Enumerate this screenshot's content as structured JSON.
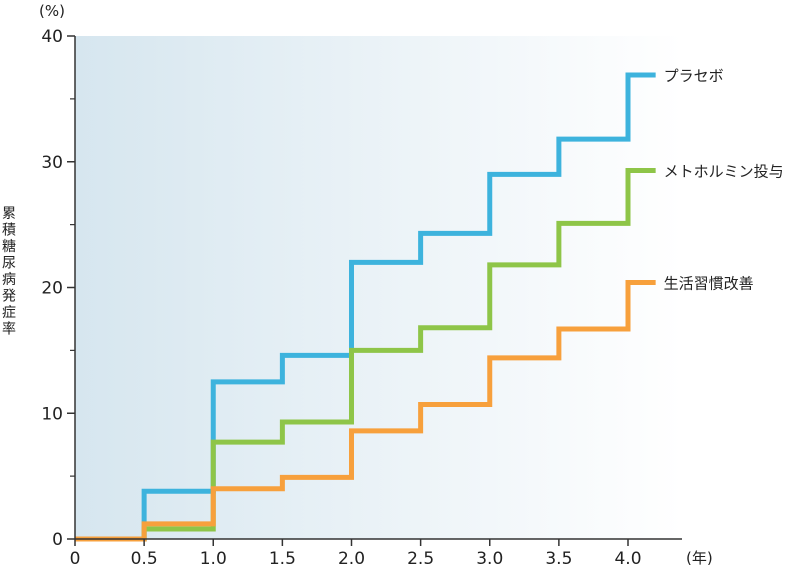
{
  "chart_data": {
    "type": "line",
    "step": true,
    "ylabel": "累積糖尿病発症率",
    "y_unit": "(%)",
    "x_unit": "(年)",
    "xlim": [
      0,
      4.3
    ],
    "ylim": [
      0,
      40
    ],
    "x_ticks": [
      "0",
      "0.5",
      "1.0",
      "1.5",
      "2.0",
      "2.5",
      "3.0",
      "3.5",
      "4.0"
    ],
    "x_tick_values": [
      0,
      0.5,
      1.0,
      1.5,
      2.0,
      2.5,
      3.0,
      3.5,
      4.0
    ],
    "y_ticks": [
      "0",
      "10",
      "20",
      "30",
      "40"
    ],
    "y_tick_values": [
      0,
      10,
      20,
      30,
      40
    ],
    "y_minor_ticks": [
      5,
      15,
      25,
      35
    ],
    "grid": false,
    "legend_placement": "right-end-of-lines",
    "background": {
      "type": "gradient",
      "from": "#d6e6ef",
      "to": "#ffffff",
      "direction": "left-to-right"
    },
    "series": [
      {
        "name": "プラセボ",
        "color": "#3db3dd",
        "steps": [
          [
            0,
            0
          ],
          [
            0.5,
            3.8
          ],
          [
            1.0,
            12.5
          ],
          [
            1.5,
            14.6
          ],
          [
            2.0,
            22.0
          ],
          [
            2.5,
            24.3
          ],
          [
            3.0,
            29.0
          ],
          [
            3.5,
            31.8
          ],
          [
            4.0,
            36.9
          ]
        ],
        "end_x": 4.2
      },
      {
        "name": "メトホルミン投与",
        "color": "#8ec548",
        "steps": [
          [
            0,
            0
          ],
          [
            0.5,
            0.8
          ],
          [
            1.0,
            7.7
          ],
          [
            1.5,
            9.3
          ],
          [
            2.0,
            15.0
          ],
          [
            2.5,
            16.8
          ],
          [
            3.0,
            21.8
          ],
          [
            3.5,
            25.1
          ],
          [
            4.0,
            29.3
          ]
        ],
        "end_x": 4.2
      },
      {
        "name": "生活習慣改善",
        "color": "#f7a03c",
        "steps": [
          [
            0,
            0
          ],
          [
            0.5,
            1.2
          ],
          [
            1.0,
            4.0
          ],
          [
            1.5,
            4.9
          ],
          [
            2.0,
            8.6
          ],
          [
            2.5,
            10.7
          ],
          [
            3.0,
            14.4
          ],
          [
            3.5,
            16.7
          ],
          [
            4.0,
            20.4
          ]
        ],
        "end_x": 4.2
      }
    ]
  }
}
